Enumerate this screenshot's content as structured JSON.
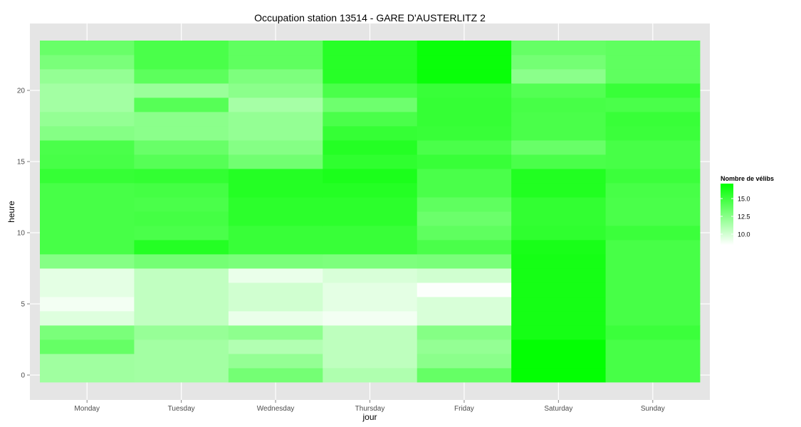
{
  "chart_data": {
    "type": "heatmap",
    "title": "Occupation station 13514 - GARE D'AUSTERLITZ 2",
    "xlabel": "jour",
    "ylabel": "heure",
    "x_categories": [
      "Monday",
      "Tuesday",
      "Wednesday",
      "Thursday",
      "Friday",
      "Saturday",
      "Sunday"
    ],
    "y_values": [
      0,
      1,
      2,
      3,
      4,
      5,
      6,
      7,
      8,
      9,
      10,
      11,
      12,
      13,
      14,
      15,
      16,
      17,
      18,
      19,
      20,
      21,
      22,
      23
    ],
    "y_ticks": [
      0,
      5,
      10,
      15,
      20
    ],
    "ylim": [
      -0.5,
      23.5
    ],
    "values": [
      [
        11.7,
        11.6,
        13.2,
        11.2,
        13.7,
        17.0,
        14.7
      ],
      [
        11.7,
        11.6,
        12.1,
        10.7,
        12.4,
        17.0,
        14.7
      ],
      [
        13.7,
        11.6,
        11.1,
        10.7,
        12.1,
        17.0,
        14.7
      ],
      [
        13.0,
        12.0,
        12.3,
        10.7,
        12.6,
        16.4,
        15.1
      ],
      [
        9.6,
        10.6,
        9.2,
        8.9,
        9.8,
        16.4,
        14.7
      ],
      [
        8.9,
        10.6,
        10.1,
        9.4,
        9.8,
        16.4,
        14.7
      ],
      [
        9.4,
        10.6,
        10.1,
        9.4,
        8.6,
        16.4,
        14.7
      ],
      [
        9.4,
        10.6,
        9.2,
        9.8,
        10.1,
        16.4,
        14.7
      ],
      [
        12.6,
        13.2,
        13.0,
        12.9,
        13.0,
        16.4,
        14.7
      ],
      [
        14.7,
        15.9,
        15.2,
        15.2,
        14.6,
        16.3,
        14.7
      ],
      [
        14.7,
        14.6,
        15.2,
        15.2,
        13.9,
        15.5,
        15.1
      ],
      [
        14.7,
        14.8,
        15.6,
        15.6,
        13.5,
        15.4,
        14.6
      ],
      [
        14.7,
        14.6,
        15.6,
        15.6,
        13.9,
        15.4,
        14.6
      ],
      [
        14.7,
        14.8,
        15.9,
        15.9,
        14.6,
        16.0,
        14.7
      ],
      [
        15.3,
        15.4,
        15.9,
        16.2,
        14.6,
        16.0,
        15.1
      ],
      [
        14.7,
        14.2,
        13.3,
        15.5,
        15.2,
        14.6,
        14.7
      ],
      [
        14.6,
        13.6,
        12.6,
        15.9,
        14.6,
        13.6,
        14.7
      ],
      [
        12.6,
        12.4,
        12.1,
        15.3,
        15.2,
        14.6,
        15.1
      ],
      [
        12.1,
        12.4,
        12.1,
        14.6,
        15.3,
        14.6,
        15.2
      ],
      [
        11.6,
        14.2,
        11.5,
        13.4,
        15.3,
        14.7,
        14.6
      ],
      [
        11.6,
        11.9,
        12.4,
        14.6,
        15.2,
        14.3,
        15.2
      ],
      [
        12.1,
        14.0,
        12.9,
        15.8,
        16.8,
        12.4,
        13.9
      ],
      [
        13.0,
        14.6,
        13.9,
        15.8,
        16.8,
        13.2,
        13.9
      ],
      [
        13.6,
        14.6,
        13.9,
        15.8,
        16.8,
        13.7,
        13.9
      ]
    ],
    "legend": {
      "title": "Nombre de vélibs",
      "ticks": [
        10.0,
        12.5,
        15.0
      ],
      "tick_labels": [
        "10.0",
        "12.5",
        "15.0"
      ],
      "min": 8.5,
      "max": 17.1,
      "low_color": "#ffffff",
      "high_color": "#00ff00",
      "placement": "right"
    },
    "grid": true,
    "panel_background": "#e5e5e5",
    "grid_color": "#ffffff"
  }
}
